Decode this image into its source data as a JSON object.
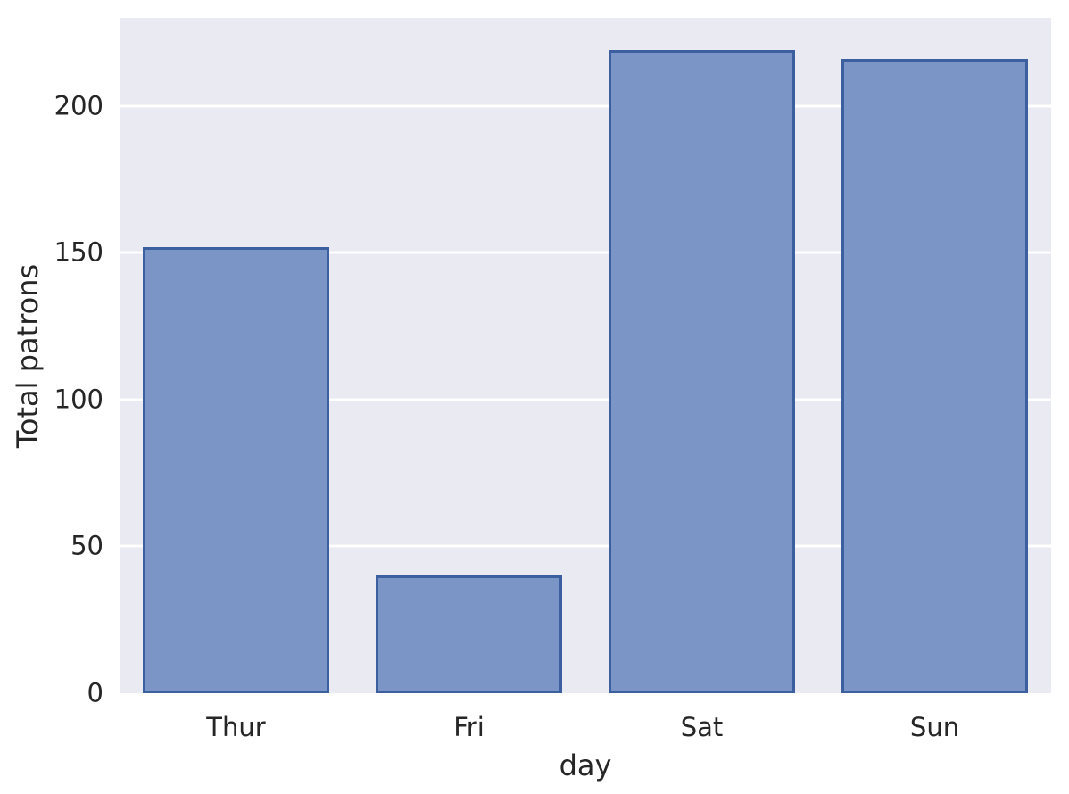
{
  "chart_data": {
    "type": "bar",
    "categories": [
      "Thur",
      "Fri",
      "Sat",
      "Sun"
    ],
    "values": [
      152,
      40,
      219,
      216
    ],
    "title": "",
    "xlabel": "day",
    "ylabel": "Total patrons",
    "yticks": [
      0,
      50,
      100,
      150,
      200
    ],
    "ylim": [
      0,
      230
    ],
    "grid": "horizontal-white-lines",
    "legend_position": "none",
    "colors": {
      "bar_fill": "#7b95c6",
      "bar_edge": "#3c5fa0",
      "plot_background": "#eaeaf2",
      "gridline": "#ffffff",
      "figure_background": "#ffffff",
      "text": "#262626"
    }
  }
}
